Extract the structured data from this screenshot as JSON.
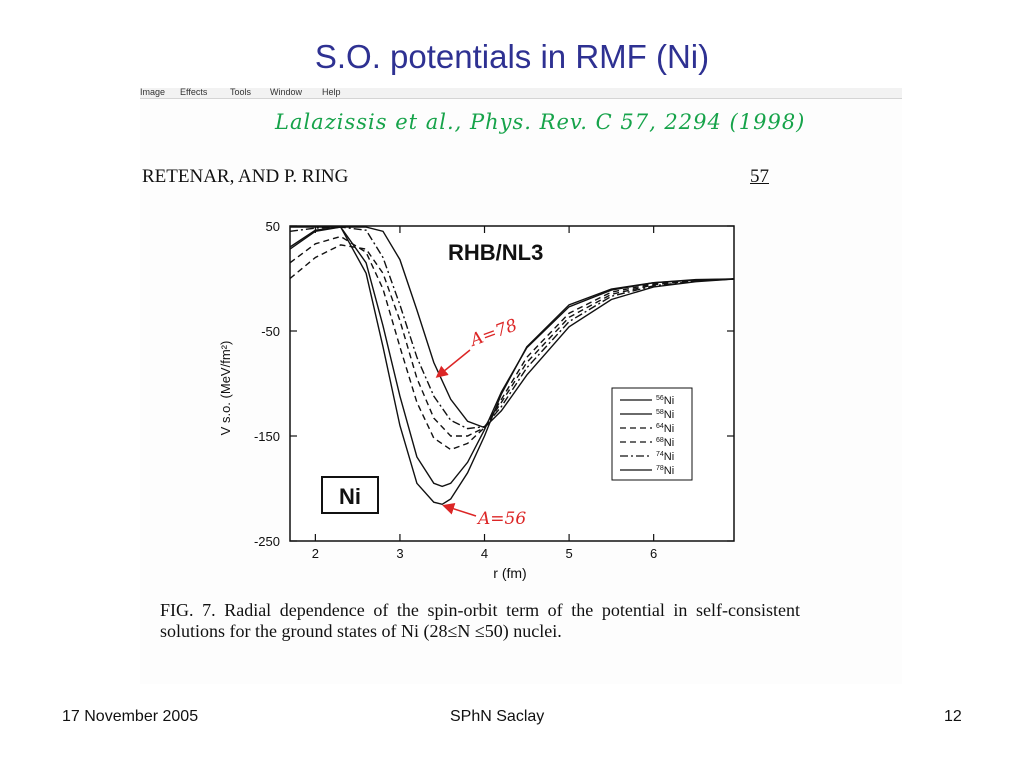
{
  "slide": {
    "title": "S.O. potentials in RMF (Ni)",
    "footer_left": "17 November 2005",
    "footer_center": "SPhN Saclay",
    "footer_right": "12"
  },
  "scan": {
    "menu": [
      "Image",
      "Effects",
      "Tools",
      "Window",
      "Help"
    ],
    "handwritten_reference": "Lalazissis et al., Phys. Rev. C 57, 2294 (1998)",
    "header_left": "RETENAR, AND P. RING",
    "header_right": "57",
    "caption": "FIG. 7. Radial dependence of the spin-orbit term of the potential in self-consistent solutions for the ground states of Ni (28≤N ≤50) nuclei."
  },
  "chart_data": {
    "type": "line",
    "title": "RHB/NL3",
    "xlabel": "r  (fm)",
    "ylabel": "V s.o. (MeV/fm²)",
    "xlim": [
      1.7,
      6.95
    ],
    "ylim": [
      -250,
      50
    ],
    "xticks": [
      "2",
      "3",
      "4",
      "5",
      "6"
    ],
    "yticks": [
      "50",
      "-50",
      "-150",
      "-250"
    ],
    "annotations": [
      "A=78",
      "A=56"
    ],
    "inset_label": "Ni",
    "legend_position": "right",
    "series": [
      {
        "name": "56Ni",
        "dash": "solid",
        "x": [
          1.7,
          2.0,
          2.3,
          2.6,
          2.8,
          3.0,
          3.2,
          3.4,
          3.5,
          3.6,
          3.8,
          4.0,
          4.2,
          4.5,
          5.0,
          5.5,
          6.0,
          6.5,
          6.95
        ],
        "y": [
          28,
          45,
          49,
          5,
          -65,
          -140,
          -195,
          -213,
          -215,
          -210,
          -185,
          -150,
          -110,
          -65,
          -25,
          -10,
          -4,
          -1,
          -0.5
        ]
      },
      {
        "name": "58Ni",
        "dash": "solid",
        "x": [
          1.7,
          2.0,
          2.3,
          2.6,
          2.8,
          3.0,
          3.2,
          3.4,
          3.5,
          3.6,
          3.8,
          4.0,
          4.2,
          4.5,
          5.0,
          5.5,
          6.0,
          6.5,
          6.95
        ],
        "y": [
          30,
          46,
          49,
          15,
          -45,
          -112,
          -170,
          -195,
          -198,
          -195,
          -175,
          -144,
          -108,
          -66,
          -27,
          -11,
          -4,
          -1.5,
          -0.5
        ]
      },
      {
        "name": "64Ni",
        "dash": "dashed",
        "x": [
          1.7,
          2.0,
          2.3,
          2.6,
          2.8,
          3.0,
          3.2,
          3.4,
          3.6,
          3.8,
          4.0,
          4.2,
          4.5,
          5.0,
          5.5,
          6.0,
          6.5,
          6.95
        ],
        "y": [
          15,
          33,
          40,
          25,
          -10,
          -65,
          -118,
          -152,
          -163,
          -157,
          -142,
          -115,
          -75,
          -33,
          -13,
          -5,
          -2,
          -0.5
        ]
      },
      {
        "name": "68Ni",
        "dash": "dashed",
        "x": [
          1.7,
          2.0,
          2.3,
          2.6,
          2.8,
          3.0,
          3.2,
          3.4,
          3.6,
          3.8,
          4.0,
          4.2,
          4.5,
          5.0,
          5.5,
          6.0,
          6.5,
          6.95
        ],
        "y": [
          0,
          20,
          32,
          28,
          5,
          -40,
          -95,
          -133,
          -150,
          -150,
          -142,
          -118,
          -80,
          -37,
          -15,
          -6,
          -2,
          -0.5
        ]
      },
      {
        "name": "74Ni",
        "dash": "dashdot",
        "x": [
          1.7,
          2.0,
          2.3,
          2.6,
          2.8,
          3.0,
          3.2,
          3.4,
          3.6,
          3.8,
          4.0,
          4.2,
          4.5,
          5.0,
          5.5,
          6.0,
          6.5,
          6.95
        ],
        "y": [
          45,
          48,
          49,
          46,
          20,
          -25,
          -75,
          -112,
          -135,
          -143,
          -141,
          -122,
          -85,
          -41,
          -17,
          -7,
          -2.5,
          -0.5
        ]
      },
      {
        "name": "78Ni",
        "dash": "solid",
        "x": [
          1.7,
          2.0,
          2.3,
          2.6,
          2.8,
          3.0,
          3.2,
          3.4,
          3.6,
          3.8,
          4.0,
          4.2,
          4.5,
          5.0,
          5.5,
          6.0,
          6.5,
          6.95
        ],
        "y": [
          49,
          49,
          49,
          49,
          45,
          18,
          -30,
          -80,
          -115,
          -136,
          -142,
          -126,
          -92,
          -46,
          -20,
          -8,
          -3,
          -0.5
        ]
      }
    ]
  }
}
